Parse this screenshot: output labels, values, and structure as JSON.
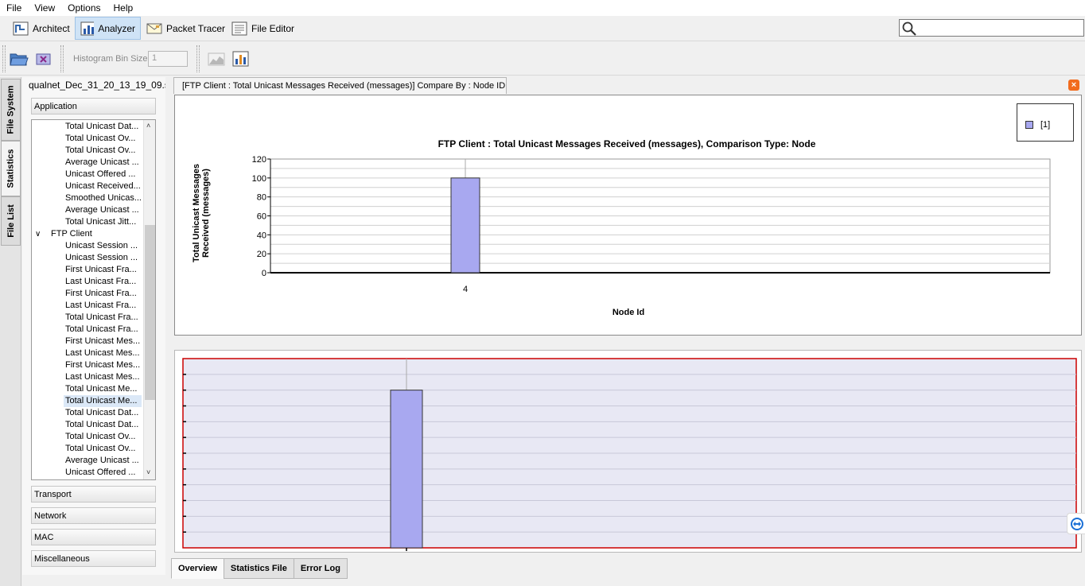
{
  "menu": [
    "File",
    "View",
    "Options",
    "Help"
  ],
  "perspectives": [
    {
      "label": "Architect",
      "icon": "architect-icon",
      "active": false
    },
    {
      "label": "Analyzer",
      "icon": "bar-chart-icon",
      "active": true
    },
    {
      "label": "Packet Tracer",
      "icon": "envelope-icon",
      "active": false
    },
    {
      "label": "File Editor",
      "icon": "document-icon",
      "active": false
    }
  ],
  "search": {
    "placeholder": "",
    "icon": "search-icon"
  },
  "toolbar": {
    "bin_label": "Histogram Bin Size",
    "bin_value": "1",
    "icons": [
      "open-folder-icon",
      "close-file-icon",
      "area-chart-icon",
      "bar-chart-export-icon"
    ]
  },
  "vertical_tabs": [
    "File System",
    "Statistics",
    "File List"
  ],
  "left_panel": {
    "file_title": "qualnet_Dec_31_20_13_19_09.s...",
    "categories_top": [
      "Application"
    ],
    "tree": [
      {
        "label": "Total Unicast Dat...",
        "type": "leaf"
      },
      {
        "label": "Total Unicast Ov...",
        "type": "leaf"
      },
      {
        "label": "Total Unicast Ov...",
        "type": "leaf"
      },
      {
        "label": "Average Unicast ...",
        "type": "leaf"
      },
      {
        "label": "Unicast Offered ...",
        "type": "leaf"
      },
      {
        "label": "Unicast Received...",
        "type": "leaf"
      },
      {
        "label": "Smoothed Unicas...",
        "type": "leaf"
      },
      {
        "label": "Average Unicast ...",
        "type": "leaf"
      },
      {
        "label": "Total Unicast Jitt...",
        "type": "leaf"
      },
      {
        "label": "FTP Client",
        "type": "group"
      },
      {
        "label": "Unicast Session ...",
        "type": "leaf"
      },
      {
        "label": "Unicast Session ...",
        "type": "leaf"
      },
      {
        "label": "First Unicast Fra...",
        "type": "leaf"
      },
      {
        "label": "Last Unicast Fra...",
        "type": "leaf"
      },
      {
        "label": "First Unicast Fra...",
        "type": "leaf"
      },
      {
        "label": "Last Unicast Fra...",
        "type": "leaf"
      },
      {
        "label": "Total Unicast Fra...",
        "type": "leaf"
      },
      {
        "label": "Total Unicast Fra...",
        "type": "leaf"
      },
      {
        "label": "First Unicast Mes...",
        "type": "leaf"
      },
      {
        "label": "Last Unicast Mes...",
        "type": "leaf"
      },
      {
        "label": "First Unicast Mes...",
        "type": "leaf"
      },
      {
        "label": "Last Unicast Mes...",
        "type": "leaf"
      },
      {
        "label": "Total Unicast Me...",
        "type": "leaf"
      },
      {
        "label": "Total Unicast Me...",
        "type": "leaf",
        "selected": true
      },
      {
        "label": "Total Unicast Dat...",
        "type": "leaf"
      },
      {
        "label": "Total Unicast Dat...",
        "type": "leaf"
      },
      {
        "label": "Total Unicast Ov...",
        "type": "leaf"
      },
      {
        "label": "Total Unicast Ov...",
        "type": "leaf"
      },
      {
        "label": "Average Unicast ...",
        "type": "leaf"
      },
      {
        "label": "Unicast Offered ...",
        "type": "leaf"
      }
    ],
    "categories_bottom": [
      "Transport",
      "Network",
      "MAC",
      "Miscellaneous"
    ]
  },
  "chart_tab": {
    "label": "[FTP Client :  Total Unicast Messages Received (messages)] Compare By : Node ID"
  },
  "bottom_tabs": [
    {
      "label": "Overview",
      "active": true
    },
    {
      "label": "Statistics File",
      "active": false
    },
    {
      "label": "Error Log",
      "active": false
    }
  ],
  "colors": {
    "bar": "#a8a8f0",
    "overview_bg": "#e8e8f4",
    "overview_border": "#cc0000",
    "accent": "#cfe3f6"
  },
  "chart_data": {
    "type": "bar",
    "title": "FTP Client :  Total Unicast Messages Received (messages), Comparison Type: Node",
    "xlabel": "Node Id",
    "ylabel_lines": [
      "Total Unicast Messages",
      "Received (messages)"
    ],
    "categories": [
      "4"
    ],
    "series": [
      {
        "name": "[1]",
        "values": [
          100
        ]
      }
    ],
    "ylim": [
      0,
      120
    ],
    "yticks": [
      0,
      20,
      40,
      60,
      80,
      100,
      120
    ],
    "grid": true,
    "legend": "top-right"
  }
}
